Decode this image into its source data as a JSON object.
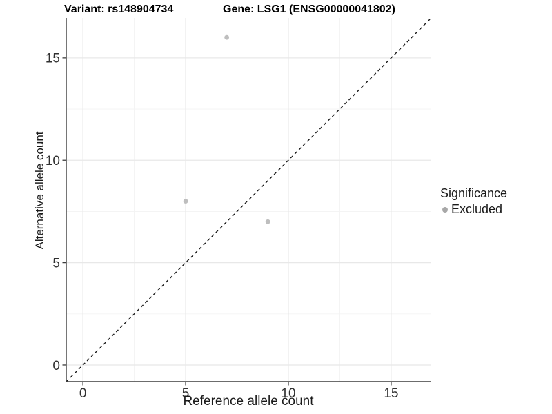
{
  "figure": {
    "background": "#ffffff",
    "title_left": "Variant: rs148904734",
    "title_right": "Gene: LSG1 (ENSG00000041802)"
  },
  "chart_data": {
    "type": "scatter",
    "title": "Variant: rs148904734   Gene: LSG1 (ENSG00000041802)",
    "xlabel": "Reference allele count",
    "ylabel": "Alternative allele count",
    "xlim": [
      -0.81,
      16.95
    ],
    "ylim": [
      -0.81,
      16.95
    ],
    "x_ticks": [
      0,
      5,
      10,
      15
    ],
    "y_ticks": [
      0,
      5,
      10,
      15
    ],
    "x_minor_ticks": [
      2.5,
      7.5,
      12.5
    ],
    "y_minor_ticks": [
      2.5,
      7.5,
      12.5
    ],
    "grid": true,
    "series": [
      {
        "name": "Excluded",
        "points": [
          {
            "x": 5,
            "y": 8
          },
          {
            "x": 9,
            "y": 7
          },
          {
            "x": 7,
            "y": 16
          }
        ]
      }
    ],
    "identity_line": {
      "slope": 1,
      "intercept": 0,
      "style": "dashed"
    },
    "legend": {
      "title": "Significance",
      "position": "right",
      "items": [
        {
          "label": "Excluded",
          "color": "#a8a8a8"
        }
      ]
    },
    "colors": {
      "point": "#bebebe",
      "legend_key": "#a8a8a8",
      "grid_major": "#e8e8e8",
      "grid_minor": "#f3f3f3",
      "axis_line": "#3c3c3c",
      "tick_text": "#303030",
      "dashed_line": "#1a1a1a"
    }
  }
}
